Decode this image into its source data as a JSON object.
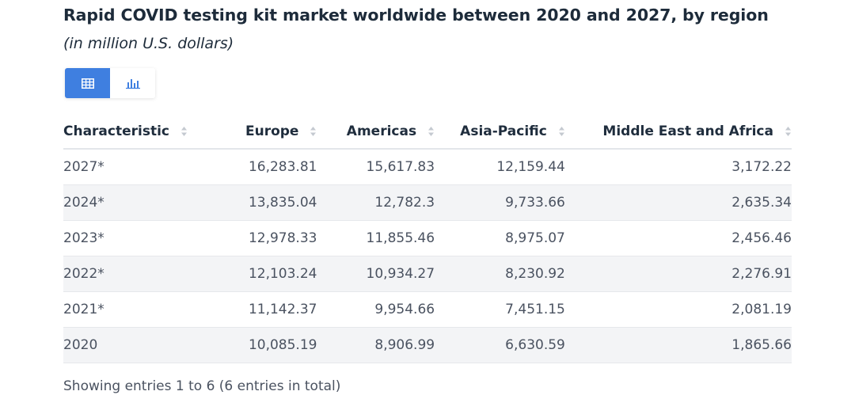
{
  "title": "Rapid COVID testing kit market worldwide between 2020 and 2027, by region",
  "subtitle": "(in million U.S. dollars)",
  "view_toggle": {
    "options": [
      "table-icon",
      "bar-chart-icon"
    ],
    "active": "table",
    "active_color": "#3f7fe0"
  },
  "chart_data": {
    "type": "table",
    "title": "Rapid COVID testing kit market worldwide between 2020 and 2027, by region",
    "subtitle": "(in million U.S. dollars)",
    "columns": [
      "Characteristic",
      "Europe",
      "Americas",
      "Asia-Pacific",
      "Middle East and Africa"
    ],
    "rows": [
      [
        "2027*",
        "16,283.81",
        "15,617.83",
        "12,159.44",
        "3,172.22"
      ],
      [
        "2024*",
        "13,835.04",
        "12,782.3",
        "9,733.66",
        "2,635.34"
      ],
      [
        "2023*",
        "12,978.33",
        "11,855.46",
        "8,975.07",
        "2,456.46"
      ],
      [
        "2022*",
        "12,103.24",
        "10,934.27",
        "8,230.92",
        "2,276.91"
      ],
      [
        "2021*",
        "11,142.37",
        "9,954.66",
        "7,451.15",
        "2,081.19"
      ],
      [
        "2020",
        "10,085.19",
        "8,906.99",
        "6,630.59",
        "1,865.66"
      ]
    ],
    "series": [
      {
        "name": "Europe",
        "values": [
          16283.81,
          13835.04,
          12978.33,
          12103.24,
          11142.37,
          10085.19
        ]
      },
      {
        "name": "Americas",
        "values": [
          15617.83,
          12782.3,
          11855.46,
          10934.27,
          9954.66,
          8906.99
        ]
      },
      {
        "name": "Asia-Pacific",
        "values": [
          12159.44,
          9733.66,
          8975.07,
          8230.92,
          7451.15,
          6630.59
        ]
      },
      {
        "name": "Middle East and Africa",
        "values": [
          3172.22,
          2635.34,
          2456.46,
          2276.91,
          2081.19,
          1865.66
        ]
      }
    ],
    "categories": [
      "2027*",
      "2024*",
      "2023*",
      "2022*",
      "2021*",
      "2020"
    ]
  },
  "footer": "Showing entries 1 to 6 (6 entries in total)"
}
